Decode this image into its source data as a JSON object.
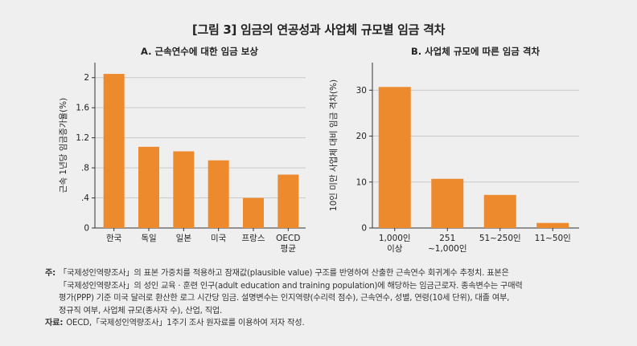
{
  "figure": {
    "title": "[그림 3] 임금의 연공성과 사업체 규모별 임금 격차"
  },
  "chart_data": [
    {
      "type": "bar",
      "title": "A. 근속연수에 대한 임금 보상",
      "xlabel": "",
      "ylabel": "근속 1년당 임금증가율(%)",
      "ylim": [
        0,
        2.2
      ],
      "yticks": [
        0,
        0.4,
        0.8,
        1.2,
        1.6,
        2
      ],
      "ytick_labels": [
        "0",
        ".4",
        ".8",
        "1.2",
        "1.6",
        "2"
      ],
      "categories": [
        [
          "한국"
        ],
        [
          "독일"
        ],
        [
          "일본"
        ],
        [
          "미국"
        ],
        [
          "프랑스"
        ],
        [
          "OECD",
          "평균"
        ]
      ],
      "values": [
        2.05,
        1.08,
        1.02,
        0.9,
        0.4,
        0.71
      ],
      "color": "#EE8A2E",
      "grid": true
    },
    {
      "type": "bar",
      "title": "B. 사업체 규모에 따른 임금 격차",
      "xlabel": "",
      "ylabel": "10인 미만 사업체 대비 임금 격차(%)",
      "ylim": [
        0,
        36
      ],
      "yticks": [
        0,
        10,
        20,
        30
      ],
      "ytick_labels": [
        "0",
        "10",
        "20",
        "30"
      ],
      "categories": [
        [
          "1,000인",
          "이상"
        ],
        [
          "251",
          "~1,000인"
        ],
        [
          "51~250인"
        ],
        [
          "11~50인"
        ]
      ],
      "values": [
        30.7,
        10.7,
        7.2,
        1.1
      ],
      "color": "#EE8A2E",
      "grid": true
    }
  ],
  "notes": {
    "note_label": "주:",
    "note_lines": [
      "「국제성인역량조사」의 표본 가중치를 적용하고 잠재값(plausible value) 구조를 반영하여 산출한 근속연수 회귀계수 추정치. 표본은",
      "「국제성인역량조사」의 성인 교육 · 훈련 인구(adult education and training population)에 해당하는 임금근로자. 종속변수는 구매력",
      "평가(PPP) 기준 미국 달러로 환산한 로그 시간당 임금. 설명변수는 인지역량(수리력 점수), 근속연수, 성별, 연령(10세 단위), 대졸 여부,",
      "정규직 여부, 사업체 규모(종사자 수), 산업, 직업."
    ],
    "source_label": "자료:",
    "source_text": "OECD,「국제성인역량조사」1주기 조사 원자료를 이용하여 저자 작성."
  }
}
